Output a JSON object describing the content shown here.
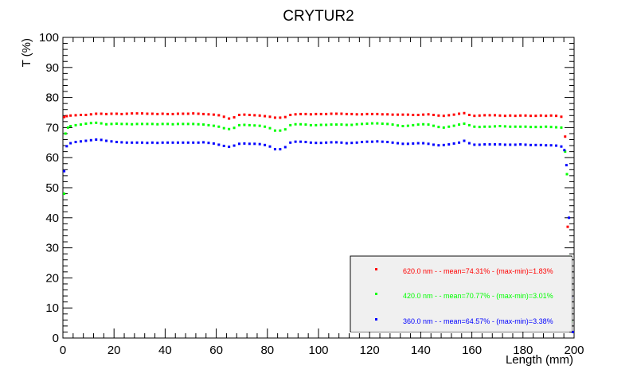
{
  "chart_data": {
    "type": "scatter",
    "title": "CRYTUR2",
    "xlabel": "Length (mm)",
    "ylabel": "T (%)",
    "xlim": [
      0,
      200
    ],
    "ylim": [
      0,
      100
    ],
    "xticks": [
      0,
      20,
      40,
      60,
      80,
      100,
      120,
      140,
      160,
      180,
      200
    ],
    "yticks": [
      0,
      10,
      20,
      30,
      40,
      50,
      60,
      70,
      80,
      90,
      100
    ],
    "grid": false,
    "legend_position": "bottom-right",
    "series": [
      {
        "name": "620.0 nm -  - mean=74.31% - (max-min)=1.83%",
        "color": "#ff0000",
        "points": [
          [
            0.5,
            73.5
          ],
          [
            1.5,
            73.8
          ],
          [
            3,
            74.0
          ],
          [
            5,
            74.1
          ],
          [
            7,
            74.2
          ],
          [
            9,
            74.2
          ],
          [
            11,
            74.4
          ],
          [
            13,
            74.6
          ],
          [
            15,
            74.6
          ],
          [
            17,
            74.5
          ],
          [
            19,
            74.6
          ],
          [
            21,
            74.6
          ],
          [
            23,
            74.5
          ],
          [
            25,
            74.6
          ],
          [
            27,
            74.7
          ],
          [
            29,
            74.7
          ],
          [
            31,
            74.7
          ],
          [
            33,
            74.6
          ],
          [
            35,
            74.6
          ],
          [
            37,
            74.5
          ],
          [
            39,
            74.6
          ],
          [
            41,
            74.5
          ],
          [
            43,
            74.5
          ],
          [
            45,
            74.6
          ],
          [
            47,
            74.6
          ],
          [
            49,
            74.6
          ],
          [
            51,
            74.7
          ],
          [
            53,
            74.6
          ],
          [
            55,
            74.5
          ],
          [
            57,
            74.4
          ],
          [
            59,
            74.3
          ],
          [
            61,
            74.1
          ],
          [
            63,
            73.6
          ],
          [
            65,
            73.0
          ],
          [
            67,
            73.4
          ],
          [
            69,
            74.2
          ],
          [
            71,
            74.3
          ],
          [
            73,
            74.2
          ],
          [
            75,
            74.1
          ],
          [
            77,
            74.0
          ],
          [
            79,
            73.8
          ],
          [
            81,
            73.6
          ],
          [
            83,
            73.3
          ],
          [
            85,
            73.3
          ],
          [
            87,
            73.5
          ],
          [
            89,
            74.2
          ],
          [
            91,
            74.4
          ],
          [
            93,
            74.5
          ],
          [
            95,
            74.5
          ],
          [
            97,
            74.4
          ],
          [
            99,
            74.5
          ],
          [
            101,
            74.5
          ],
          [
            103,
            74.5
          ],
          [
            105,
            74.6
          ],
          [
            107,
            74.6
          ],
          [
            109,
            74.6
          ],
          [
            111,
            74.5
          ],
          [
            113,
            74.5
          ],
          [
            115,
            74.4
          ],
          [
            117,
            74.4
          ],
          [
            119,
            74.5
          ],
          [
            121,
            74.5
          ],
          [
            123,
            74.5
          ],
          [
            125,
            74.4
          ],
          [
            127,
            74.4
          ],
          [
            129,
            74.3
          ],
          [
            131,
            74.3
          ],
          [
            133,
            74.3
          ],
          [
            135,
            74.3
          ],
          [
            137,
            74.2
          ],
          [
            139,
            74.2
          ],
          [
            141,
            74.3
          ],
          [
            143,
            74.4
          ],
          [
            145,
            74.2
          ],
          [
            147,
            74.0
          ],
          [
            149,
            73.9
          ],
          [
            151,
            74.1
          ],
          [
            153,
            74.3
          ],
          [
            155,
            74.6
          ],
          [
            157,
            74.8
          ],
          [
            159,
            74.2
          ],
          [
            161,
            73.9
          ],
          [
            163,
            74.0
          ],
          [
            165,
            74.1
          ],
          [
            167,
            74.1
          ],
          [
            169,
            74.1
          ],
          [
            171,
            74.0
          ],
          [
            173,
            73.9
          ],
          [
            175,
            74.0
          ],
          [
            177,
            73.9
          ],
          [
            179,
            74.0
          ],
          [
            181,
            74.0
          ],
          [
            183,
            73.9
          ],
          [
            185,
            73.9
          ],
          [
            187,
            74.0
          ],
          [
            189,
            73.9
          ],
          [
            191,
            74.0
          ],
          [
            193,
            73.9
          ],
          [
            195,
            73.6
          ],
          [
            196.5,
            67.0
          ],
          [
            197.5,
            37.0
          ],
          [
            198.5,
            9.5
          ]
        ]
      },
      {
        "name": "420.0 nm -  - mean=70.77% - (max-min)=3.01%",
        "color": "#00ff00",
        "points": [
          [
            0.5,
            48.0
          ],
          [
            1,
            68.0
          ],
          [
            2,
            70.0
          ],
          [
            3,
            70.5
          ],
          [
            5,
            70.8
          ],
          [
            7,
            71.0
          ],
          [
            9,
            71.3
          ],
          [
            11,
            71.5
          ],
          [
            13,
            71.6
          ],
          [
            15,
            71.4
          ],
          [
            17,
            71.1
          ],
          [
            19,
            71.2
          ],
          [
            21,
            71.3
          ],
          [
            23,
            71.2
          ],
          [
            25,
            71.2
          ],
          [
            27,
            71.1
          ],
          [
            29,
            71.2
          ],
          [
            31,
            71.2
          ],
          [
            33,
            71.2
          ],
          [
            35,
            71.2
          ],
          [
            37,
            71.1
          ],
          [
            39,
            71.2
          ],
          [
            41,
            71.2
          ],
          [
            43,
            71.1
          ],
          [
            45,
            71.2
          ],
          [
            47,
            71.2
          ],
          [
            49,
            71.2
          ],
          [
            51,
            71.2
          ],
          [
            53,
            71.1
          ],
          [
            55,
            71.0
          ],
          [
            57,
            70.8
          ],
          [
            59,
            70.6
          ],
          [
            61,
            70.3
          ],
          [
            63,
            69.8
          ],
          [
            65,
            69.5
          ],
          [
            67,
            69.9
          ],
          [
            69,
            70.8
          ],
          [
            71,
            70.9
          ],
          [
            73,
            70.8
          ],
          [
            75,
            70.7
          ],
          [
            77,
            70.6
          ],
          [
            79,
            70.3
          ],
          [
            81,
            69.8
          ],
          [
            83,
            69.0
          ],
          [
            85,
            69.0
          ],
          [
            87,
            69.4
          ],
          [
            89,
            70.8
          ],
          [
            91,
            71.1
          ],
          [
            93,
            71.1
          ],
          [
            95,
            71.0
          ],
          [
            97,
            70.8
          ],
          [
            99,
            70.8
          ],
          [
            101,
            70.9
          ],
          [
            103,
            70.9
          ],
          [
            105,
            71.0
          ],
          [
            107,
            71.0
          ],
          [
            109,
            71.0
          ],
          [
            111,
            70.9
          ],
          [
            113,
            70.9
          ],
          [
            115,
            71.1
          ],
          [
            117,
            71.2
          ],
          [
            119,
            71.3
          ],
          [
            121,
            71.4
          ],
          [
            123,
            71.4
          ],
          [
            125,
            71.3
          ],
          [
            127,
            71.2
          ],
          [
            129,
            71.0
          ],
          [
            131,
            70.7
          ],
          [
            133,
            70.5
          ],
          [
            135,
            70.6
          ],
          [
            137,
            70.8
          ],
          [
            139,
            71.0
          ],
          [
            141,
            71.1
          ],
          [
            143,
            71.0
          ],
          [
            145,
            70.6
          ],
          [
            147,
            70.2
          ],
          [
            149,
            70.0
          ],
          [
            151,
            70.3
          ],
          [
            153,
            70.6
          ],
          [
            155,
            71.0
          ],
          [
            157,
            71.3
          ],
          [
            159,
            70.8
          ],
          [
            161,
            70.3
          ],
          [
            163,
            70.2
          ],
          [
            165,
            70.3
          ],
          [
            167,
            70.3
          ],
          [
            169,
            70.4
          ],
          [
            171,
            70.5
          ],
          [
            173,
            70.4
          ],
          [
            175,
            70.3
          ],
          [
            177,
            70.3
          ],
          [
            179,
            70.3
          ],
          [
            181,
            70.3
          ],
          [
            183,
            70.2
          ],
          [
            185,
            70.2
          ],
          [
            187,
            70.2
          ],
          [
            189,
            70.3
          ],
          [
            191,
            70.2
          ],
          [
            193,
            70.1
          ],
          [
            195,
            70.0
          ],
          [
            196.5,
            62.0
          ],
          [
            197.2,
            54.5
          ],
          [
            198,
            27.0
          ],
          [
            198.8,
            5.5
          ]
        ]
      },
      {
        "name": "360.0 nm -  - mean=64.57% - (max-min)=3.38%",
        "color": "#0000ff",
        "points": [
          [
            0.5,
            55.5
          ],
          [
            1.5,
            63.8
          ],
          [
            3,
            64.8
          ],
          [
            5,
            65.2
          ],
          [
            7,
            65.4
          ],
          [
            9,
            65.6
          ],
          [
            11,
            65.8
          ],
          [
            13,
            66.0
          ],
          [
            15,
            65.9
          ],
          [
            17,
            65.6
          ],
          [
            19,
            65.4
          ],
          [
            21,
            65.2
          ],
          [
            23,
            65.1
          ],
          [
            25,
            65.0
          ],
          [
            27,
            65.0
          ],
          [
            29,
            65.0
          ],
          [
            31,
            65.0
          ],
          [
            33,
            64.9
          ],
          [
            35,
            65.0
          ],
          [
            37,
            64.9
          ],
          [
            39,
            65.0
          ],
          [
            41,
            65.0
          ],
          [
            43,
            65.0
          ],
          [
            45,
            65.0
          ],
          [
            47,
            65.0
          ],
          [
            49,
            65.0
          ],
          [
            51,
            65.0
          ],
          [
            53,
            65.0
          ],
          [
            55,
            65.1
          ],
          [
            57,
            64.9
          ],
          [
            59,
            64.7
          ],
          [
            61,
            64.3
          ],
          [
            63,
            63.9
          ],
          [
            65,
            63.6
          ],
          [
            67,
            64.0
          ],
          [
            69,
            64.6
          ],
          [
            71,
            64.7
          ],
          [
            73,
            64.6
          ],
          [
            75,
            64.6
          ],
          [
            77,
            64.5
          ],
          [
            79,
            64.2
          ],
          [
            81,
            63.7
          ],
          [
            83,
            62.8
          ],
          [
            85,
            62.8
          ],
          [
            87,
            63.5
          ],
          [
            89,
            65.0
          ],
          [
            91,
            65.3
          ],
          [
            93,
            65.3
          ],
          [
            95,
            65.2
          ],
          [
            97,
            65.0
          ],
          [
            99,
            64.9
          ],
          [
            101,
            64.9
          ],
          [
            103,
            65.0
          ],
          [
            105,
            65.1
          ],
          [
            107,
            65.1
          ],
          [
            109,
            65.0
          ],
          [
            111,
            64.8
          ],
          [
            113,
            64.9
          ],
          [
            115,
            65.0
          ],
          [
            117,
            65.2
          ],
          [
            119,
            65.3
          ],
          [
            121,
            65.3
          ],
          [
            123,
            65.4
          ],
          [
            125,
            65.3
          ],
          [
            127,
            65.2
          ],
          [
            129,
            65.0
          ],
          [
            131,
            64.8
          ],
          [
            133,
            64.6
          ],
          [
            135,
            64.6
          ],
          [
            137,
            64.7
          ],
          [
            139,
            64.8
          ],
          [
            141,
            64.8
          ],
          [
            143,
            64.6
          ],
          [
            145,
            64.3
          ],
          [
            147,
            64.1
          ],
          [
            149,
            64.2
          ],
          [
            151,
            64.4
          ],
          [
            153,
            64.7
          ],
          [
            155,
            65.0
          ],
          [
            157,
            65.6
          ],
          [
            159,
            64.8
          ],
          [
            161,
            64.3
          ],
          [
            163,
            64.3
          ],
          [
            165,
            64.4
          ],
          [
            167,
            64.4
          ],
          [
            169,
            64.4
          ],
          [
            171,
            64.4
          ],
          [
            173,
            64.3
          ],
          [
            175,
            64.3
          ],
          [
            177,
            64.3
          ],
          [
            179,
            64.4
          ],
          [
            181,
            64.3
          ],
          [
            183,
            64.2
          ],
          [
            185,
            64.2
          ],
          [
            187,
            64.2
          ],
          [
            189,
            64.1
          ],
          [
            191,
            64.1
          ],
          [
            193,
            64.0
          ],
          [
            195,
            63.7
          ],
          [
            196.2,
            62.5
          ],
          [
            197,
            57.5
          ],
          [
            198,
            40.0
          ],
          [
            198.8,
            13.5
          ],
          [
            199.5,
            2.0
          ]
        ]
      }
    ]
  }
}
